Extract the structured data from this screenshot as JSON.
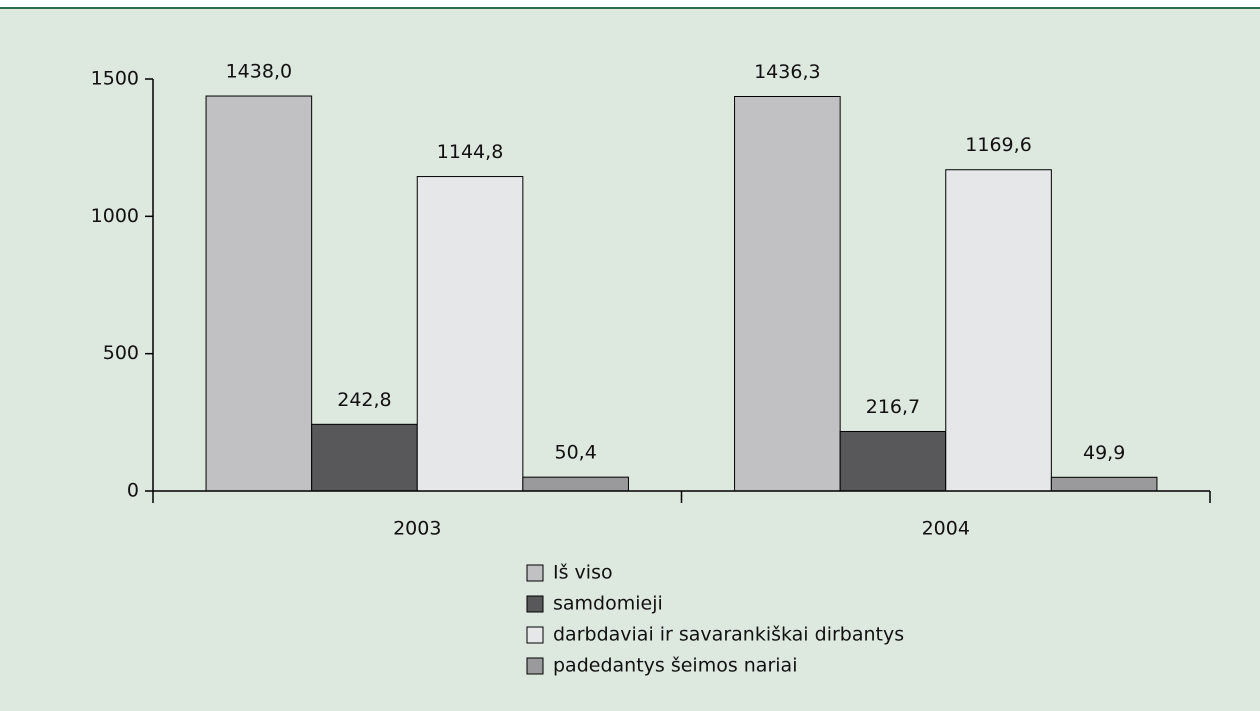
{
  "chart_data": {
    "type": "bar",
    "categories": [
      "2003",
      "2004"
    ],
    "series": [
      {
        "name": "Iš viso",
        "color": "#c1c1c4",
        "values": [
          1438.0,
          1436.3
        ],
        "value_labels": [
          "1438,0",
          "1436,3"
        ]
      },
      {
        "name": "samdomieji",
        "color": "#58585a",
        "values": [
          242.8,
          216.7
        ],
        "value_labels": [
          "242,8",
          "216,7"
        ]
      },
      {
        "name": "darbdaviai ir savarankiškai dirbantys",
        "color": "#e6e7e9",
        "values": [
          1144.8,
          1169.6
        ],
        "value_labels": [
          "1144,8",
          "1169,6"
        ]
      },
      {
        "name": "padedantys šeimos nariai",
        "color": "#9a9a9c",
        "values": [
          50.4,
          49.9
        ],
        "value_labels": [
          "50,4",
          "49,9"
        ]
      }
    ],
    "ylim": [
      0,
      1500
    ],
    "yticks": [
      0,
      500,
      1000,
      1500
    ],
    "grid": false,
    "legend": "bottom"
  }
}
